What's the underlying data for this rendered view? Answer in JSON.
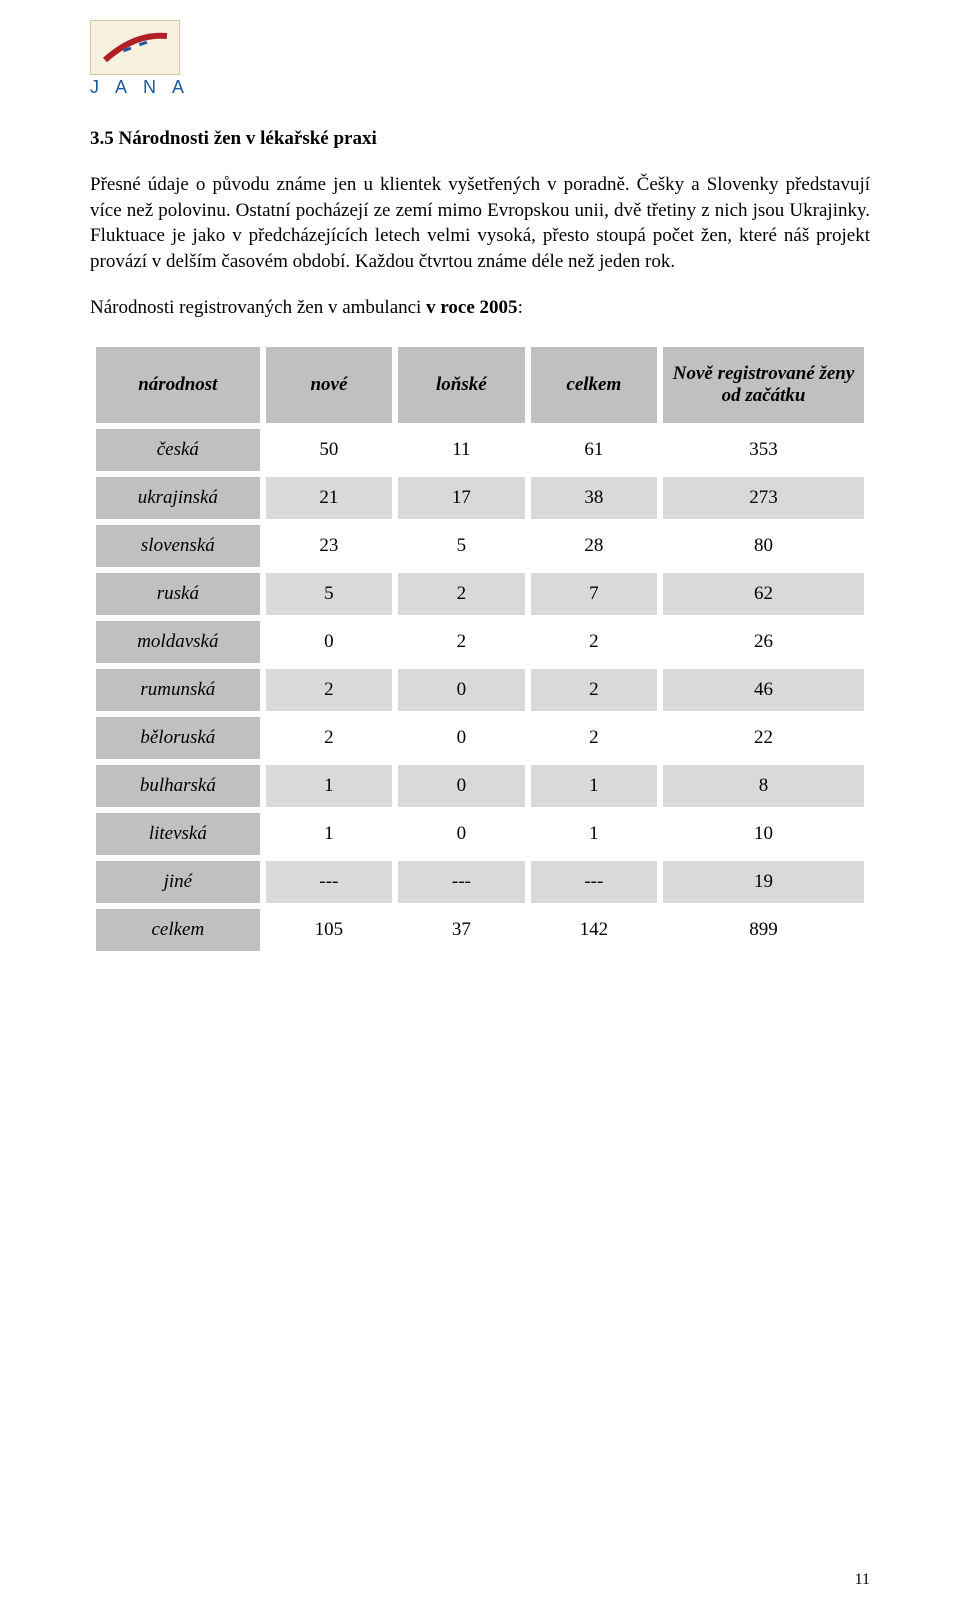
{
  "logo": {
    "text": "J A N A"
  },
  "section": {
    "title": "3.5 Národnosti žen v lékařské praxi",
    "para1": "Přesné údaje o původu známe jen u klientek vyšetřených v poradně. Češky a Slovenky představují více než polovinu. Ostatní pocházejí ze zemí mimo Evropskou unii, dvě třetiny z nich jsou Ukrajinky. Fluktuace je jako v předcházejících letech velmi vysoká, přesto stoupá počet žen, které náš projekt provází v delším časovém období. Každou čtvrtou známe déle než jeden rok.",
    "caption_prefix": "Národnosti registrovaných žen v ambulanci ",
    "caption_bold": "v roce 2005",
    "caption_suffix": ":"
  },
  "table": {
    "columns": [
      "národnost",
      "nové",
      "loňské",
      "celkem",
      "Nově registrované ženy od začátku"
    ],
    "col_widths": [
      "22%",
      "17%",
      "17%",
      "17%",
      "27%"
    ],
    "header_bg": "#c0c0c0",
    "shaded_bg": "#d9d9d9",
    "cell_bg": "#ffffff",
    "rows": [
      {
        "label": "česká",
        "v": [
          "50",
          "11",
          "61",
          "353"
        ],
        "shaded": false
      },
      {
        "label": "ukrajinská",
        "v": [
          "21",
          "17",
          "38",
          "273"
        ],
        "shaded": true
      },
      {
        "label": "slovenská",
        "v": [
          "23",
          "5",
          "28",
          "80"
        ],
        "shaded": false
      },
      {
        "label": "ruská",
        "v": [
          "5",
          "2",
          "7",
          "62"
        ],
        "shaded": true
      },
      {
        "label": "moldavská",
        "v": [
          "0",
          "2",
          "2",
          "26"
        ],
        "shaded": false
      },
      {
        "label": "rumunská",
        "v": [
          "2",
          "0",
          "2",
          "46"
        ],
        "shaded": true
      },
      {
        "label": "běloruská",
        "v": [
          "2",
          "0",
          "2",
          "22"
        ],
        "shaded": false
      },
      {
        "label": "bulharská",
        "v": [
          "1",
          "0",
          "1",
          "8"
        ],
        "shaded": true
      },
      {
        "label": "litevská",
        "v": [
          "1",
          "0",
          "1",
          "10"
        ],
        "shaded": false
      },
      {
        "label": "jiné",
        "v": [
          "---",
          "---",
          "---",
          "19"
        ],
        "shaded": true
      },
      {
        "label": "celkem",
        "v": [
          "105",
          "37",
          "142",
          "899"
        ],
        "shaded": false
      }
    ]
  },
  "page_number": "11",
  "colors": {
    "text": "#000000",
    "logo_blue": "#1a5a9a",
    "logo_bg": "#f7f1df",
    "logo_red": "#b21f24"
  }
}
